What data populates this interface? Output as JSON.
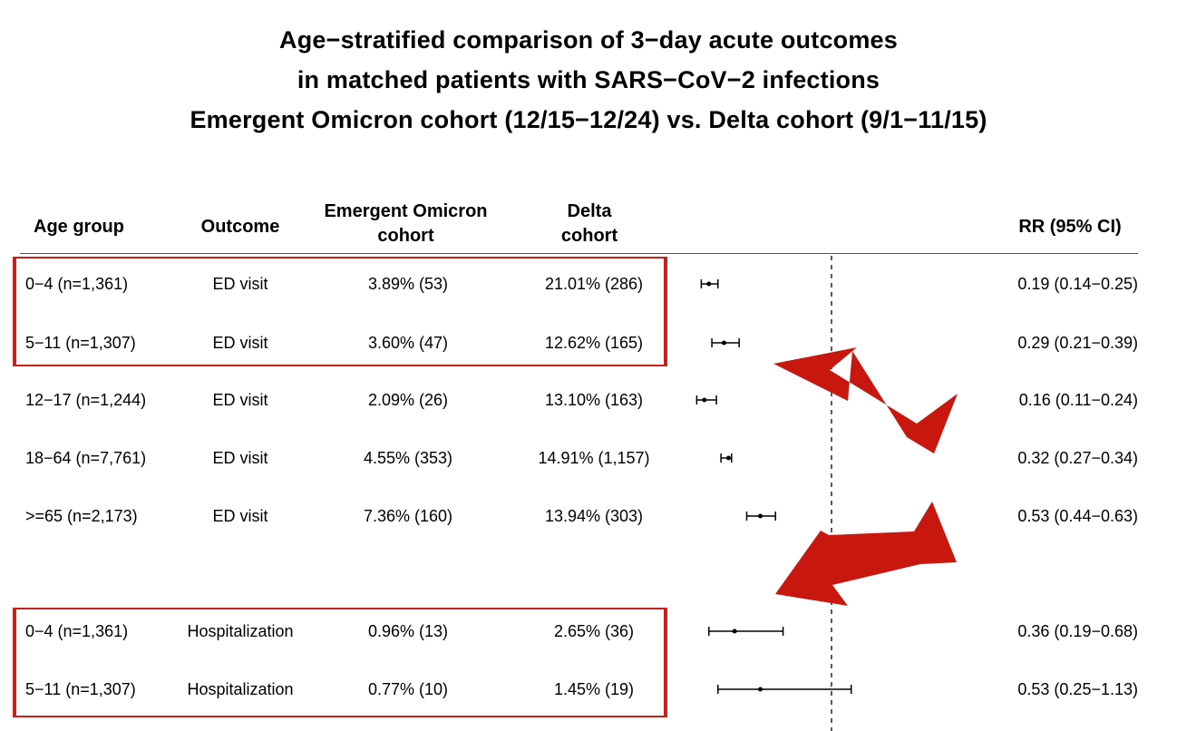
{
  "title": {
    "line1": "Age−stratified comparison of 3−day acute outcomes",
    "line2": "in matched patients with SARS−CoV−2 infections",
    "line3": "Emergent Omicron cohort (12/15−12/24) vs. Delta cohort (9/1−11/15)"
  },
  "headers": {
    "age_group": "Age group",
    "outcome": "Outcome",
    "omicron_l1": "Emergent Omicron",
    "omicron_l2": "cohort",
    "delta_l1": "Delta",
    "delta_l2": "cohort",
    "rr": "RR (95% CI)"
  },
  "rows": [
    {
      "age": "0−4 (n=1,361)",
      "outcome": "ED visit",
      "omicron": "3.89% (53)",
      "delta": "21.01% (286)",
      "rr_text": "0.19 (0.14−0.25)"
    },
    {
      "age": "5−11 (n=1,307)",
      "outcome": "ED visit",
      "omicron": "3.60% (47)",
      "delta": "12.62% (165)",
      "rr_text": "0.29 (0.21−0.39)"
    },
    {
      "age": "12−17 (n=1,244)",
      "outcome": "ED visit",
      "omicron": "2.09% (26)",
      "delta": "13.10% (163)",
      "rr_text": "0.16 (0.11−0.24)"
    },
    {
      "age": "18−64 (n=7,761)",
      "outcome": "ED visit",
      "omicron": "4.55% (353)",
      "delta": "14.91% (1,157)",
      "rr_text": "0.32 (0.27−0.34)"
    },
    {
      "age": ">=65 (n=2,173)",
      "outcome": "ED visit",
      "omicron": "7.36% (160)",
      "delta": "13.94% (303)",
      "rr_text": "0.53 (0.44−0.63)"
    },
    {
      "age": "0−4 (n=1,361)",
      "outcome": "Hospitalization",
      "omicron": "0.96% (13)",
      "delta": "2.65% (36)",
      "rr_text": "0.36 (0.19−0.68)"
    },
    {
      "age": "5−11 (n=1,307)",
      "outcome": "Hospitalization",
      "omicron": "0.77% (10)",
      "delta": "1.45% (19)",
      "rr_text": "0.53 (0.25−1.13)"
    }
  ],
  "colors": {
    "highlight": "#c8201a",
    "arrow": "#c8170f",
    "ink": "#000000"
  },
  "chart_data": {
    "type": "forest",
    "title": "Age−stratified comparison of 3−day acute outcomes in matched patients with SARS−CoV−2 infections Emergent Omicron cohort (12/15−12/24) vs. Delta cohort (9/1−11/15)",
    "xlabel": "",
    "ylabel": "",
    "reference_line": 1,
    "xlim": [
      0.1,
      1.2
    ],
    "x_scale": "linear",
    "categories": [
      "0−4 (n=1,361) ED visit",
      "5−11 (n=1,307) ED visit",
      "12−17 (n=1,244) ED visit",
      "18−64 (n=7,761) ED visit",
      ">=65 (n=2,173) ED visit",
      "0−4 (n=1,361) Hospitalization",
      "5−11 (n=1,307) Hospitalization"
    ],
    "rr": [
      0.19,
      0.29,
      0.16,
      0.32,
      0.53,
      0.36,
      0.53
    ],
    "lower": [
      0.14,
      0.21,
      0.11,
      0.27,
      0.44,
      0.19,
      0.25
    ],
    "upper": [
      0.25,
      0.39,
      0.24,
      0.34,
      0.63,
      0.68,
      1.13
    ],
    "highlighted_rows": [
      [
        0,
        1
      ],
      [
        5,
        6
      ]
    ]
  }
}
